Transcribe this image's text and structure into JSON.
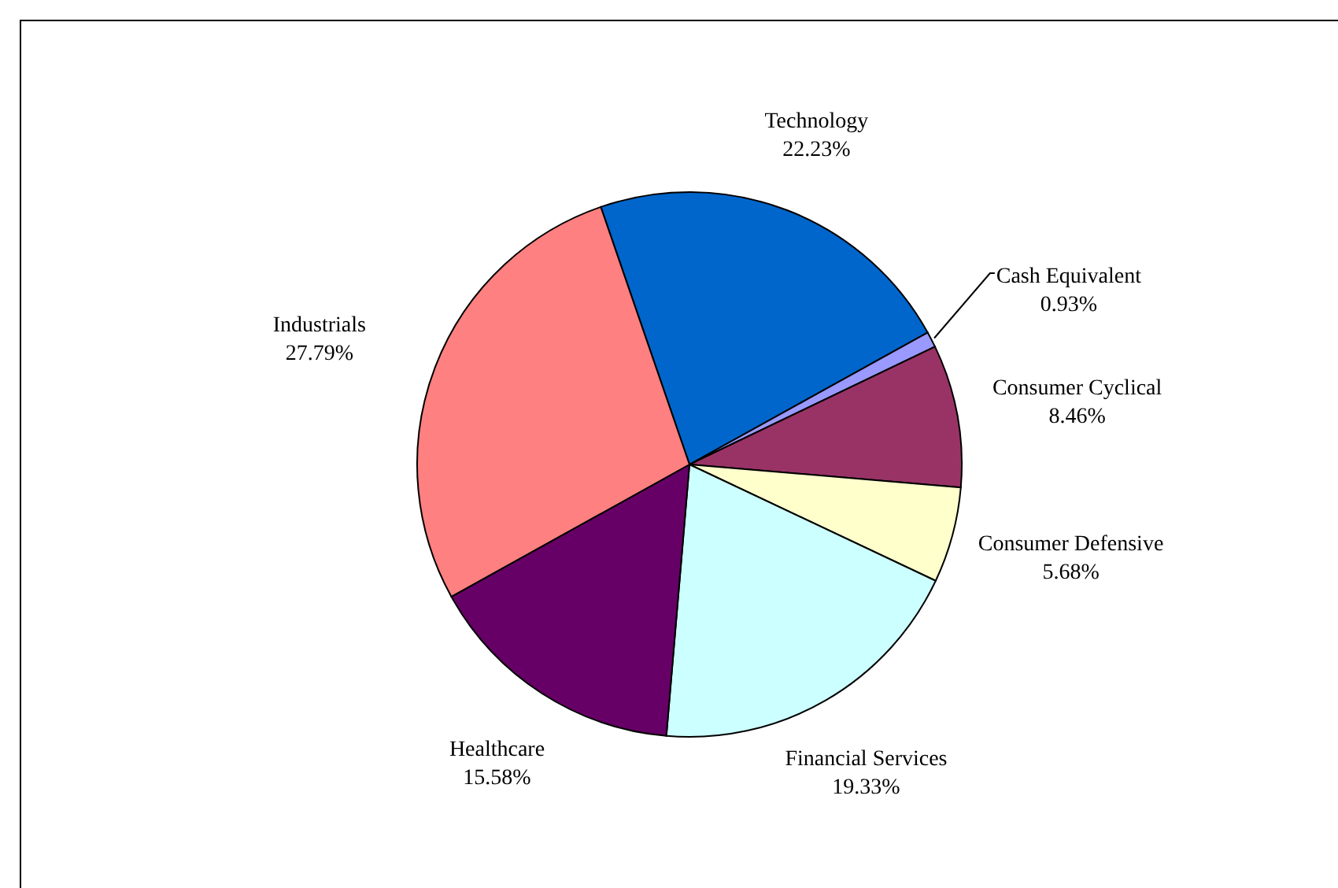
{
  "chart_data": {
    "type": "pie",
    "categories": [
      "Technology",
      "Cash Equivalent",
      "Consumer Cyclical",
      "Consumer Defensive",
      "Financial Services",
      "Healthcare",
      "Industrials"
    ],
    "values": [
      22.23,
      0.93,
      8.46,
      5.68,
      19.33,
      15.58,
      27.79
    ],
    "value_labels": [
      "22.23%",
      "0.93%",
      "8.46%",
      "5.68%",
      "19.33%",
      "15.58%",
      "27.79%"
    ],
    "colors": [
      "#0066cc",
      "#9999ff",
      "#993366",
      "#ffffcc",
      "#ccffff",
      "#660066",
      "#ff8080"
    ]
  }
}
